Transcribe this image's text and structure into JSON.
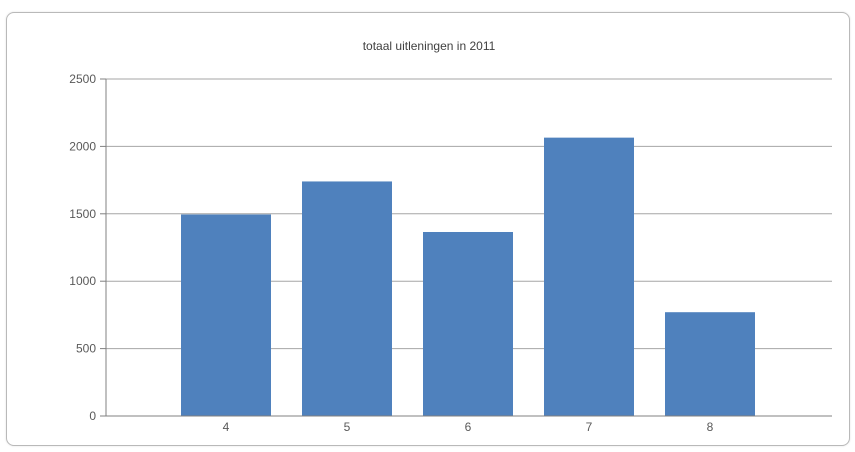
{
  "chart_data": {
    "type": "bar",
    "title": "totaal uitleningen in 2011",
    "xlabel": "",
    "ylabel": "",
    "categories": [
      "4",
      "5",
      "6",
      "7",
      "8"
    ],
    "values": [
      1495,
      1740,
      1365,
      2065,
      770
    ],
    "ylim": [
      0,
      2500
    ],
    "yticks": [
      0,
      500,
      1000,
      1500,
      2000,
      2500
    ],
    "grid": true,
    "legend": "none",
    "bar_color": "#4f81bd",
    "grid_color": "#a6a6a6"
  }
}
